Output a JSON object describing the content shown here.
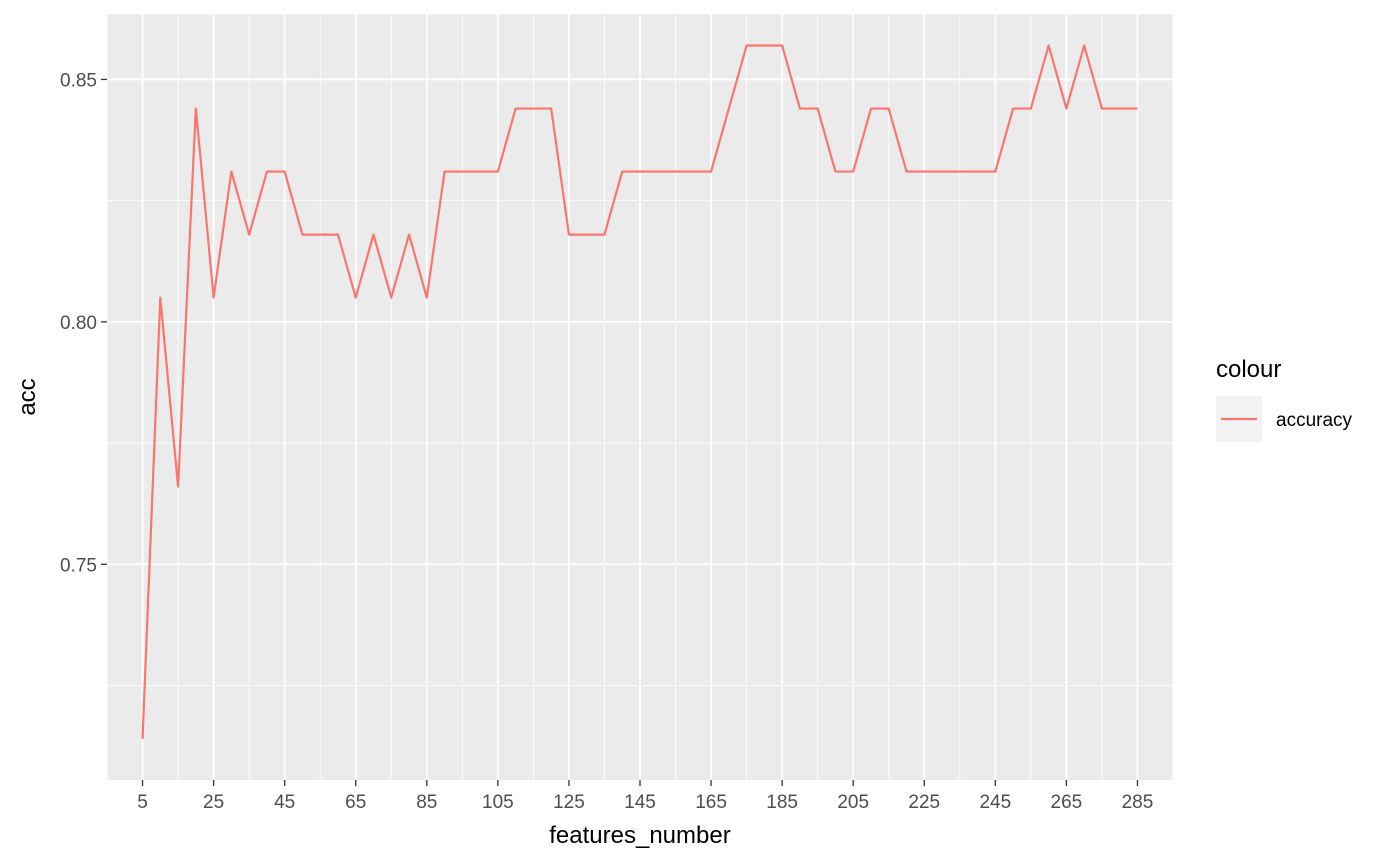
{
  "chart_data": {
    "type": "line",
    "xlabel": "features_number",
    "ylabel": "acc",
    "xlim": [
      -5,
      295
    ],
    "ylim": [
      0.7055,
      0.8635
    ],
    "x_ticks": [
      5,
      25,
      45,
      65,
      85,
      105,
      125,
      145,
      165,
      185,
      205,
      225,
      245,
      265,
      285
    ],
    "y_ticks": [
      0.75,
      0.8,
      0.85
    ],
    "y_tick_labels": [
      "0.75",
      "0.80",
      "0.85"
    ],
    "grid": true,
    "legend": {
      "title": "colour",
      "position": "right"
    },
    "series": [
      {
        "name": "accuracy",
        "color": "#F8766D",
        "x": [
          5,
          10,
          15,
          20,
          25,
          30,
          35,
          40,
          45,
          50,
          55,
          60,
          65,
          70,
          75,
          80,
          85,
          90,
          95,
          100,
          105,
          110,
          115,
          120,
          125,
          130,
          135,
          140,
          145,
          150,
          155,
          160,
          165,
          170,
          175,
          180,
          185,
          190,
          195,
          200,
          205,
          210,
          215,
          220,
          225,
          230,
          235,
          240,
          245,
          250,
          255,
          260,
          265,
          270,
          275,
          280,
          285
        ],
        "y": [
          0.714,
          0.805,
          0.766,
          0.844,
          0.805,
          0.831,
          0.818,
          0.831,
          0.831,
          0.818,
          0.818,
          0.818,
          0.805,
          0.818,
          0.805,
          0.818,
          0.805,
          0.831,
          0.831,
          0.831,
          0.831,
          0.844,
          0.844,
          0.844,
          0.818,
          0.818,
          0.818,
          0.831,
          0.831,
          0.831,
          0.831,
          0.831,
          0.831,
          0.844,
          0.857,
          0.857,
          0.857,
          0.844,
          0.844,
          0.831,
          0.831,
          0.844,
          0.844,
          0.831,
          0.831,
          0.831,
          0.831,
          0.831,
          0.831,
          0.844,
          0.844,
          0.857,
          0.844,
          0.857,
          0.844,
          0.844,
          0.844
        ]
      }
    ]
  }
}
